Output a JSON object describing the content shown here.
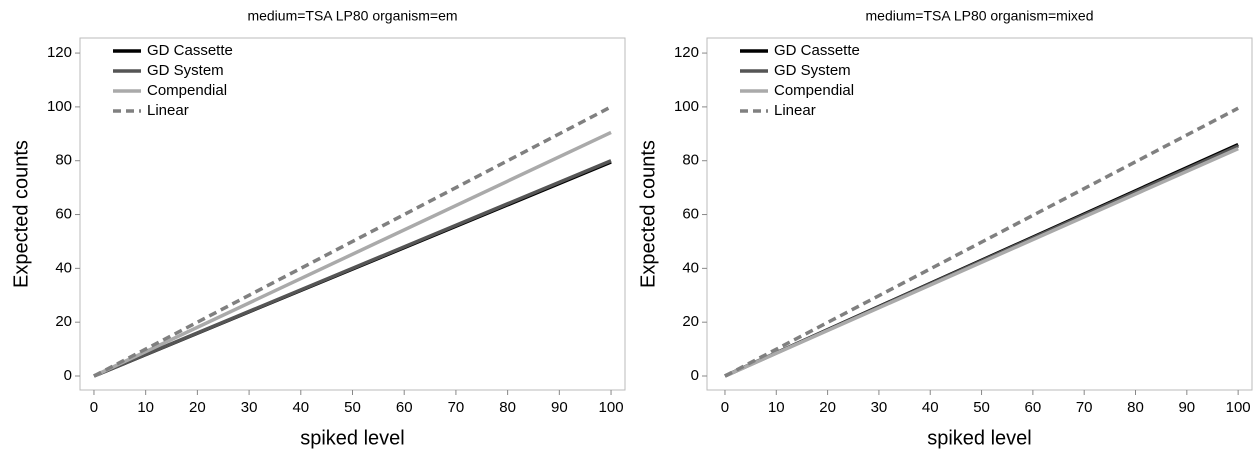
{
  "chart_data": [
    {
      "type": "line",
      "title": "medium=TSA LP80 organism=em",
      "x_label": "spiked level",
      "y_label": "Expected counts",
      "x": [
        0,
        100
      ],
      "series": [
        {
          "name": "GD Cassette",
          "color": "#000000",
          "values": [
            0,
            79.5
          ]
        },
        {
          "name": "GD System",
          "color": "#555555",
          "values": [
            0,
            80
          ]
        },
        {
          "name": "Compendial",
          "color": "#aaaaaa",
          "values": [
            0,
            90.5
          ]
        },
        {
          "name": "Linear",
          "color": "#808080",
          "dashed": true,
          "values": [
            0,
            100
          ]
        }
      ],
      "xlim": [
        -2.7,
        102.7
      ],
      "xticks": [
        0,
        10,
        20,
        30,
        40,
        50,
        60,
        70,
        80,
        90,
        100
      ],
      "ylim": [
        -5.2,
        125.6
      ],
      "yticks": [
        0,
        20,
        40,
        60,
        80,
        100,
        120
      ],
      "legend": "upper left"
    },
    {
      "type": "line",
      "title": "medium=TSA LP80 organism=mixed",
      "x_label": "spiked level",
      "y_label": "Expected counts",
      "x": [
        0,
        100
      ],
      "series": [
        {
          "name": "GD Cassette",
          "color": "#000000",
          "values": [
            0,
            86
          ]
        },
        {
          "name": "GD System",
          "color": "#555555",
          "values": [
            0,
            85.5
          ]
        },
        {
          "name": "Compendial",
          "color": "#aaaaaa",
          "values": [
            0,
            84.5
          ]
        },
        {
          "name": "Linear",
          "color": "#808080",
          "dashed": true,
          "values": [
            0,
            99.5
          ]
        }
      ],
      "xlim": [
        -3.5,
        102.7
      ],
      "xticks": [
        0,
        10,
        20,
        30,
        40,
        50,
        60,
        70,
        80,
        90,
        100
      ],
      "ylim": [
        -5.2,
        125.6
      ],
      "yticks": [
        0,
        20,
        40,
        60,
        80,
        100,
        120
      ],
      "legend": "upper left"
    }
  ]
}
